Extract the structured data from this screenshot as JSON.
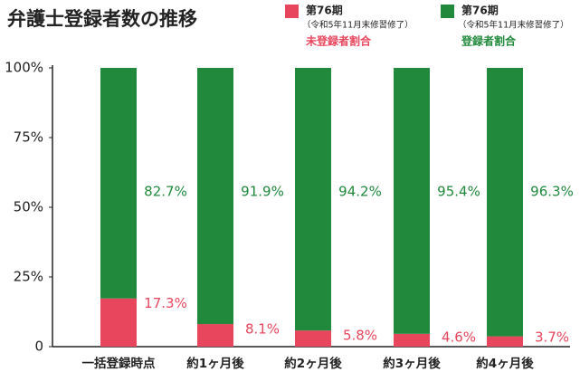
{
  "chart_data": {
    "type": "stacked_bar",
    "title": "弁護士登録者数の推移",
    "categories": [
      "一括登録時点",
      "約1ヶ月後",
      "約2ヶ月後",
      "約3ヶ月後",
      "約4ヶ月後"
    ],
    "series": [
      {
        "name": "未登録者割合",
        "term": "第76期",
        "note": "（令和5年11月末修習修了）",
        "color": "#e8465c",
        "values": [
          17.3,
          8.1,
          5.8,
          4.6,
          3.7
        ],
        "value_labels": [
          "17.3%",
          "8.1%",
          "5.8%",
          "4.6%",
          "3.7%"
        ]
      },
      {
        "name": "登録者割合",
        "term": "第76期",
        "note": "（令和5年11月末修習修了）",
        "color": "#21893c",
        "values": [
          82.7,
          91.9,
          94.2,
          95.4,
          96.3
        ],
        "value_labels": [
          "82.7%",
          "91.9%",
          "94.2%",
          "95.4%",
          "96.3%"
        ]
      }
    ],
    "ylim": [
      0,
      100
    ],
    "yticks": [
      0,
      {
        "value": 25,
        "label": "25%"
      },
      {
        "value": 50,
        "label": "50%"
      },
      {
        "value": 75,
        "label": "75%"
      },
      {
        "value": 100,
        "label": "100%"
      }
    ]
  }
}
